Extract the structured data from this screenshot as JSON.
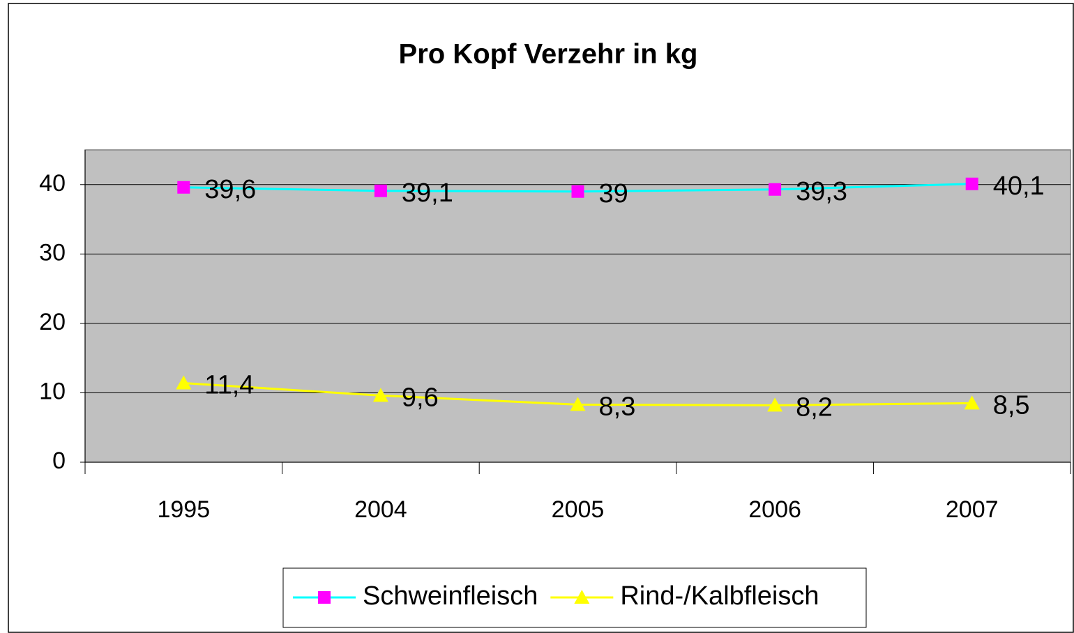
{
  "chart_data": {
    "type": "line",
    "title": "Pro Kopf Verzehr in kg",
    "categories": [
      "1995",
      "2004",
      "2005",
      "2006",
      "2007"
    ],
    "series": [
      {
        "name": "Schweinfleisch",
        "color": "#00ffff",
        "marker_color": "#ff00ff",
        "marker": "square",
        "values": [
          39.6,
          39.1,
          39,
          39.3,
          40.1
        ],
        "value_labels": [
          "39,6",
          "39,1",
          "39",
          "39,3",
          "40,1"
        ]
      },
      {
        "name": "Rind-/Kalbfleisch",
        "color": "#ffff00",
        "marker_color": "#ffff00",
        "marker": "triangle",
        "values": [
          11.4,
          9.6,
          8.3,
          8.2,
          8.5
        ],
        "value_labels": [
          "11,4",
          "9,6",
          "8,3",
          "8,2",
          "8,5"
        ]
      }
    ],
    "ylim": [
      0,
      45
    ],
    "yticks": [
      0,
      10,
      20,
      30,
      40
    ],
    "grid": true,
    "legend": "bottom"
  }
}
